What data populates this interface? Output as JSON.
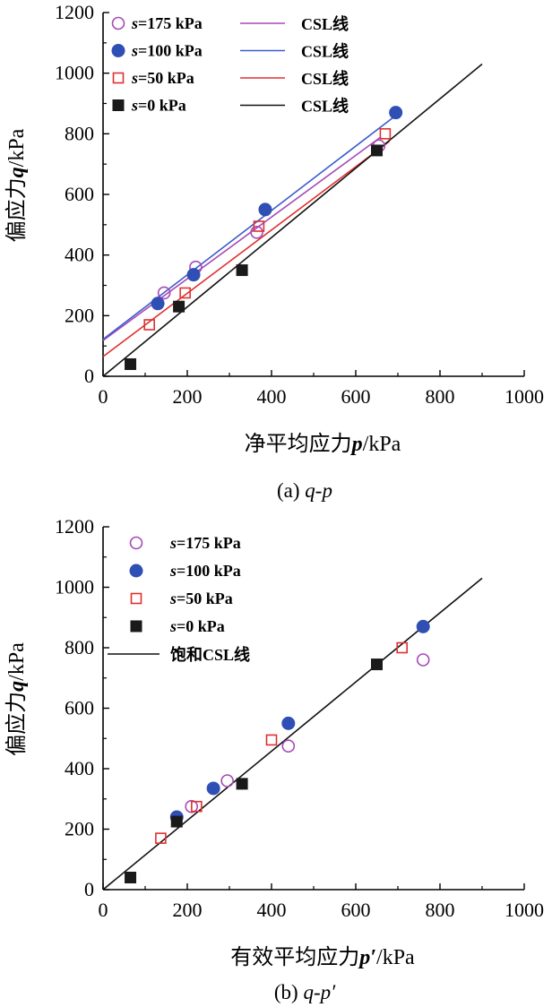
{
  "chart_data": [
    {
      "type": "scatter",
      "caption": "(a) q-p",
      "caption_prefix": "(a) ",
      "caption_var": "q-p",
      "xlabel": "净平均应力p/kPa",
      "xlabel_parts": {
        "cn": "净平均应力",
        "var": "p",
        "unit": "/kPa"
      },
      "ylabel": "偏应力q/kPa",
      "ylabel_parts": {
        "cn": "偏应力",
        "var": "q",
        "unit": "/kPa"
      },
      "xlim": [
        0,
        1000
      ],
      "ylim": [
        0,
        1200
      ],
      "xticks": [
        0,
        200,
        400,
        600,
        800,
        1000
      ],
      "yticks": [
        0,
        200,
        400,
        600,
        800,
        1000,
        1200
      ],
      "series": [
        {
          "name": "s=175 kPa",
          "var": "s",
          "label_rest": "=175 kPa",
          "marker": "circle-open",
          "color": "#a64ab6",
          "points": [
            [
              145,
              275
            ],
            [
              220,
              360
            ],
            [
              365,
              475
            ],
            [
              655,
              760
            ]
          ]
        },
        {
          "name": "s=100 kPa",
          "var": "s",
          "label_rest": "=100 kPa",
          "marker": "circle-filled",
          "color": "#2f4fb5",
          "points": [
            [
              130,
              240
            ],
            [
              215,
              335
            ],
            [
              385,
              550
            ],
            [
              695,
              870
            ]
          ]
        },
        {
          "name": "s=50 kPa",
          "var": "s",
          "label_rest": "=50 kPa",
          "marker": "square-open",
          "color": "#e03030",
          "points": [
            [
              110,
              170
            ],
            [
              195,
              275
            ],
            [
              370,
              495
            ],
            [
              670,
              800
            ]
          ]
        },
        {
          "name": "s=0 kPa",
          "var": "s",
          "label_rest": "=0 kPa",
          "marker": "square-filled",
          "color": "#1a1a1a",
          "points": [
            [
              65,
              40
            ],
            [
              180,
              230
            ],
            [
              330,
              350
            ],
            [
              650,
              745
            ]
          ]
        }
      ],
      "lines": [
        {
          "name": "CSL线",
          "color": "#a64ab6",
          "x": [
            0,
            660
          ],
          "y": [
            118,
            790
          ]
        },
        {
          "name": "CSL线",
          "color": "#3a5ccc",
          "x": [
            0,
            690
          ],
          "y": [
            122,
            855
          ]
        },
        {
          "name": "CSL线",
          "color": "#e03030",
          "x": [
            0,
            680
          ],
          "y": [
            65,
            775
          ]
        },
        {
          "name": "CSL线",
          "color": "#111111",
          "x": [
            0,
            900
          ],
          "y": [
            0,
            1030
          ]
        }
      ],
      "legend_position": "top-left"
    },
    {
      "type": "scatter",
      "caption": "(b) q-p′",
      "caption_prefix": "(b) ",
      "caption_var": "q-p′",
      "xlabel": "有效平均应力p′/kPa",
      "xlabel_parts": {
        "cn": "有效平均应力",
        "var": "p′",
        "unit": "/kPa"
      },
      "ylabel": "偏应力q/kPa",
      "ylabel_parts": {
        "cn": "偏应力",
        "var": "q",
        "unit": "/kPa"
      },
      "xlim": [
        0,
        1000
      ],
      "ylim": [
        0,
        1200
      ],
      "xticks": [
        0,
        200,
        400,
        600,
        800,
        1000
      ],
      "yticks": [
        0,
        200,
        400,
        600,
        800,
        1000,
        1200
      ],
      "series": [
        {
          "name": "s=175 kPa",
          "var": "s",
          "label_rest": "=175 kPa",
          "marker": "circle-open",
          "color": "#a64ab6",
          "points": [
            [
              210,
              275
            ],
            [
              295,
              360
            ],
            [
              440,
              475
            ],
            [
              760,
              760
            ]
          ]
        },
        {
          "name": "s=100 kPa",
          "var": "s",
          "label_rest": "=100 kPa",
          "marker": "circle-filled",
          "color": "#2f4fb5",
          "points": [
            [
              175,
              240
            ],
            [
              262,
              335
            ],
            [
              440,
              550
            ],
            [
              760,
              870
            ]
          ]
        },
        {
          "name": "s=50 kPa",
          "var": "s",
          "label_rest": "=50 kPa",
          "marker": "square-open",
          "color": "#e03030",
          "points": [
            [
              137,
              170
            ],
            [
              222,
              275
            ],
            [
              400,
              495
            ],
            [
              710,
              800
            ]
          ]
        },
        {
          "name": "s=0 kPa",
          "var": "s",
          "label_rest": "=0 kPa",
          "marker": "square-filled",
          "color": "#1a1a1a",
          "points": [
            [
              65,
              40
            ],
            [
              175,
              225
            ],
            [
              330,
              350
            ],
            [
              650,
              745
            ]
          ]
        }
      ],
      "lines": [
        {
          "name": "饱和CSL线",
          "color": "#111111",
          "x": [
            0,
            900
          ],
          "y": [
            0,
            1030
          ]
        }
      ],
      "legend_position": "top-left"
    }
  ]
}
